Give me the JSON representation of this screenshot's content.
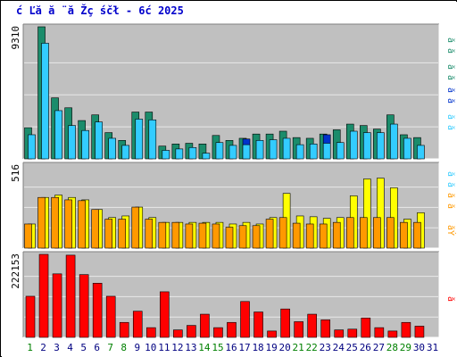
{
  "title": "ć Ľă  ă ¨ă Žç śčł  - 6ć   2025",
  "legend_labels": [
    "ă ă",
    "ă ă",
    "ă ă",
    "ă ă",
    "ă ă",
    "ă ă",
    "ăÝ",
    "ă",
    "ă ă",
    "ă ă",
    "ă ă",
    "ă ă"
  ],
  "colors": {
    "frame_bg": "#c0c0c0",
    "grid": "#e8e8e8",
    "title": "#0000cc",
    "weekday": "#000080",
    "weekend": "#008000"
  },
  "chart_data": [
    {
      "type": "bar",
      "panel": "top",
      "y_max_label": "9310",
      "y_max": 9310,
      "categories": [
        "1",
        "2",
        "3",
        "4",
        "5",
        "6",
        "7",
        "8",
        "9",
        "10",
        "11",
        "12",
        "13",
        "14",
        "15",
        "16",
        "17",
        "18",
        "19",
        "20",
        "21",
        "22",
        "23",
        "24",
        "25",
        "26",
        "27",
        "28",
        "29",
        "30",
        "31"
      ],
      "weekend_days": [
        "1",
        "7",
        "8",
        "14",
        "15",
        "21",
        "22",
        "28",
        "29"
      ],
      "series": [
        {
          "color": "#1b8c6b",
          "values": [
            2200,
            9310,
            4300,
            3600,
            2700,
            3100,
            1850,
            1300,
            3300,
            3300,
            900,
            1050,
            1100,
            1050,
            1650,
            1300,
            1450,
            1750,
            1750,
            1950,
            1500,
            1450,
            1750,
            2050,
            2450,
            2350,
            2100,
            3100,
            1700,
            1500,
            0
          ]
        },
        {
          "color": "#33ccff",
          "values": [
            1700,
            8150,
            3400,
            2350,
            2000,
            2600,
            1450,
            950,
            2800,
            2750,
            600,
            700,
            800,
            400,
            1150,
            950,
            1000,
            1300,
            1350,
            1450,
            1000,
            1050,
            1100,
            1150,
            1950,
            1850,
            1850,
            2450,
            1450,
            950,
            0
          ]
        },
        {
          "color": "#0033cc",
          "values": [
            0,
            0,
            0,
            0,
            0,
            0,
            0,
            0,
            0,
            0,
            0,
            0,
            0,
            0,
            0,
            0,
            1400,
            0,
            0,
            0,
            0,
            0,
            1700,
            0,
            0,
            0,
            0,
            0,
            0,
            0,
            0
          ]
        }
      ]
    },
    {
      "type": "bar",
      "panel": "middle",
      "y_max_label": "516",
      "y_max": 516,
      "categories": [
        "1",
        "2",
        "3",
        "4",
        "5",
        "6",
        "7",
        "8",
        "9",
        "10",
        "11",
        "12",
        "13",
        "14",
        "15",
        "16",
        "17",
        "18",
        "19",
        "20",
        "21",
        "22",
        "23",
        "24",
        "25",
        "26",
        "27",
        "28",
        "29",
        "30",
        "31"
      ],
      "series": [
        {
          "color": "#ffff00",
          "values": [
            150,
            315,
            330,
            315,
            300,
            240,
            190,
            200,
            255,
            190,
            160,
            160,
            160,
            160,
            160,
            150,
            160,
            150,
            190,
            340,
            200,
            195,
            185,
            190,
            325,
            430,
            435,
            375,
            180,
            220,
            0
          ]
        },
        {
          "color": "#ff9900",
          "values": [
            150,
            315,
            315,
            300,
            295,
            240,
            180,
            180,
            255,
            180,
            160,
            160,
            150,
            155,
            150,
            130,
            140,
            140,
            180,
            190,
            155,
            150,
            150,
            160,
            190,
            190,
            190,
            190,
            160,
            160,
            0
          ]
        }
      ]
    },
    {
      "type": "bar",
      "panel": "bottom",
      "y_max_label": "222153",
      "y_max": 222153,
      "categories": [
        "1",
        "2",
        "3",
        "4",
        "5",
        "6",
        "7",
        "8",
        "9",
        "10",
        "11",
        "12",
        "13",
        "14",
        "15",
        "16",
        "17",
        "18",
        "19",
        "20",
        "21",
        "22",
        "23",
        "24",
        "25",
        "26",
        "27",
        "28",
        "29",
        "30",
        "31"
      ],
      "series": [
        {
          "color": "#ff0000",
          "values": [
            110000,
            222153,
            170000,
            220000,
            168000,
            145000,
            110000,
            40000,
            70000,
            26000,
            122000,
            20000,
            32000,
            62000,
            26000,
            40000,
            96000,
            68000,
            17000,
            76000,
            42000,
            62000,
            47000,
            20000,
            22000,
            52000,
            26000,
            17000,
            40000,
            30000,
            0
          ]
        }
      ]
    }
  ]
}
